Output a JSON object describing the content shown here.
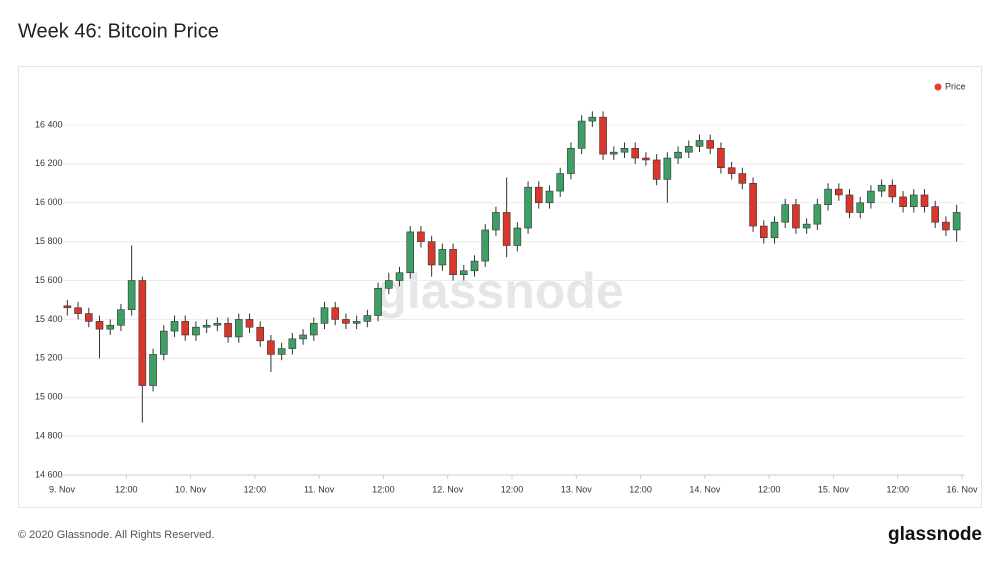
{
  "chart_data": {
    "type": "candlestick",
    "title": "Week 46: Bitcoin Price",
    "watermark": "glassnode",
    "legend": {
      "label": "Price",
      "color": "#e8402f",
      "position": "top-right"
    },
    "up_color": "#3d9f63",
    "down_color": "#d9372b",
    "grid": true,
    "ylim": [
      14600,
      16590
    ],
    "yticks": [
      {
        "value": 14600,
        "label": "14 600"
      },
      {
        "value": 14800,
        "label": "14 800"
      },
      {
        "value": 15000,
        "label": "15 000"
      },
      {
        "value": 15200,
        "label": "15 200"
      },
      {
        "value": 15400,
        "label": "15 400"
      },
      {
        "value": 15600,
        "label": "15 600"
      },
      {
        "value": 15800,
        "label": "15 800"
      },
      {
        "value": 16000,
        "label": "16 000"
      },
      {
        "value": 16200,
        "label": "16 200"
      },
      {
        "value": 16400,
        "label": "16 400"
      }
    ],
    "xticks": [
      {
        "value": 0,
        "label": "9. Nov"
      },
      {
        "value": 6,
        "label": "12:00"
      },
      {
        "value": 12,
        "label": "10. Nov"
      },
      {
        "value": 18,
        "label": "12:00"
      },
      {
        "value": 24,
        "label": "11. Nov"
      },
      {
        "value": 30,
        "label": "12:00"
      },
      {
        "value": 36,
        "label": "12. Nov"
      },
      {
        "value": 42,
        "label": "12:00"
      },
      {
        "value": 48,
        "label": "13. Nov"
      },
      {
        "value": 54,
        "label": "12:00"
      },
      {
        "value": 60,
        "label": "14. Nov"
      },
      {
        "value": 66,
        "label": "12:00"
      },
      {
        "value": 72,
        "label": "15. Nov"
      },
      {
        "value": 78,
        "label": "12:00"
      },
      {
        "value": 84,
        "label": "16. Nov"
      }
    ],
    "open": [
      15470,
      15460,
      15430,
      15390,
      15350,
      15370,
      15450,
      15600,
      15060,
      15220,
      15340,
      15390,
      15320,
      15360,
      15370,
      15380,
      15310,
      15400,
      15360,
      15290,
      15220,
      15250,
      15300,
      15320,
      15380,
      15460,
      15400,
      15380,
      15390,
      15420,
      15560,
      15600,
      15640,
      15850,
      15800,
      15680,
      15760,
      15630,
      15650,
      15700,
      15860,
      15950,
      15780,
      15870,
      16080,
      16000,
      16060,
      16150,
      16280,
      16420,
      16440,
      16250,
      16260,
      16280,
      16230,
      16220,
      16120,
      16230,
      16260,
      16290,
      16320,
      16280,
      16180,
      16150,
      16100,
      15880,
      15820,
      15900,
      15990,
      15870,
      15890,
      15990,
      16070,
      16040,
      15950,
      16000,
      16060,
      16090,
      16030,
      15980,
      16040,
      15980,
      15900,
      15860
    ],
    "high": [
      15500,
      15490,
      15460,
      15420,
      15400,
      15480,
      15780,
      15620,
      15250,
      15370,
      15420,
      15420,
      15390,
      15400,
      15410,
      15410,
      15430,
      15430,
      15390,
      15320,
      15280,
      15330,
      15350,
      15410,
      15490,
      15490,
      15430,
      15420,
      15450,
      15590,
      15640,
      15670,
      15880,
      15880,
      15830,
      15790,
      15790,
      15680,
      15730,
      15890,
      15980,
      16130,
      15900,
      16110,
      16110,
      16090,
      16180,
      16310,
      16450,
      16470,
      16470,
      16290,
      16310,
      16310,
      16260,
      16250,
      16260,
      16290,
      16320,
      16350,
      16350,
      16310,
      16210,
      16180,
      16130,
      15910,
      15930,
      16020,
      16020,
      15920,
      16020,
      16100,
      16100,
      16070,
      16030,
      16090,
      16120,
      16120,
      16060,
      16070,
      16070,
      16010,
      15930,
      15990
    ],
    "low": [
      15420,
      15400,
      15360,
      15200,
      15320,
      15340,
      15420,
      14870,
      15030,
      15190,
      15310,
      15290,
      15290,
      15330,
      15340,
      15280,
      15280,
      15330,
      15260,
      15130,
      15190,
      15220,
      15270,
      15290,
      15350,
      15370,
      15350,
      15350,
      15360,
      15390,
      15530,
      15570,
      15610,
      15770,
      15620,
      15650,
      15600,
      15600,
      15620,
      15670,
      15830,
      15720,
      15750,
      15840,
      15970,
      15970,
      16030,
      16120,
      16250,
      16390,
      16220,
      16220,
      16230,
      16200,
      16190,
      16090,
      16000,
      16200,
      16230,
      16260,
      16250,
      16150,
      16120,
      16070,
      15850,
      15790,
      15790,
      15870,
      15840,
      15840,
      15860,
      15960,
      16010,
      15920,
      15920,
      15970,
      16030,
      16000,
      15950,
      15950,
      15950,
      15870,
      15830,
      15800
    ],
    "close": [
      15460,
      15430,
      15390,
      15350,
      15370,
      15450,
      15600,
      15060,
      15220,
      15340,
      15390,
      15320,
      15360,
      15370,
      15380,
      15310,
      15400,
      15360,
      15290,
      15220,
      15250,
      15300,
      15320,
      15380,
      15460,
      15400,
      15380,
      15390,
      15420,
      15560,
      15600,
      15640,
      15850,
      15800,
      15680,
      15760,
      15630,
      15650,
      15700,
      15860,
      15950,
      15780,
      15870,
      16080,
      16000,
      16060,
      16150,
      16280,
      16420,
      16440,
      16250,
      16260,
      16280,
      16230,
      16220,
      16120,
      16230,
      16260,
      16290,
      16320,
      16280,
      16180,
      16150,
      16100,
      15880,
      15820,
      15900,
      15990,
      15870,
      15890,
      15990,
      16070,
      16040,
      15950,
      16000,
      16060,
      16090,
      16030,
      15980,
      16040,
      15980,
      15900,
      15860,
      15950
    ]
  },
  "footer": {
    "copyright": "© 2020 Glassnode. All Rights Reserved.",
    "logo": "glassnode"
  }
}
